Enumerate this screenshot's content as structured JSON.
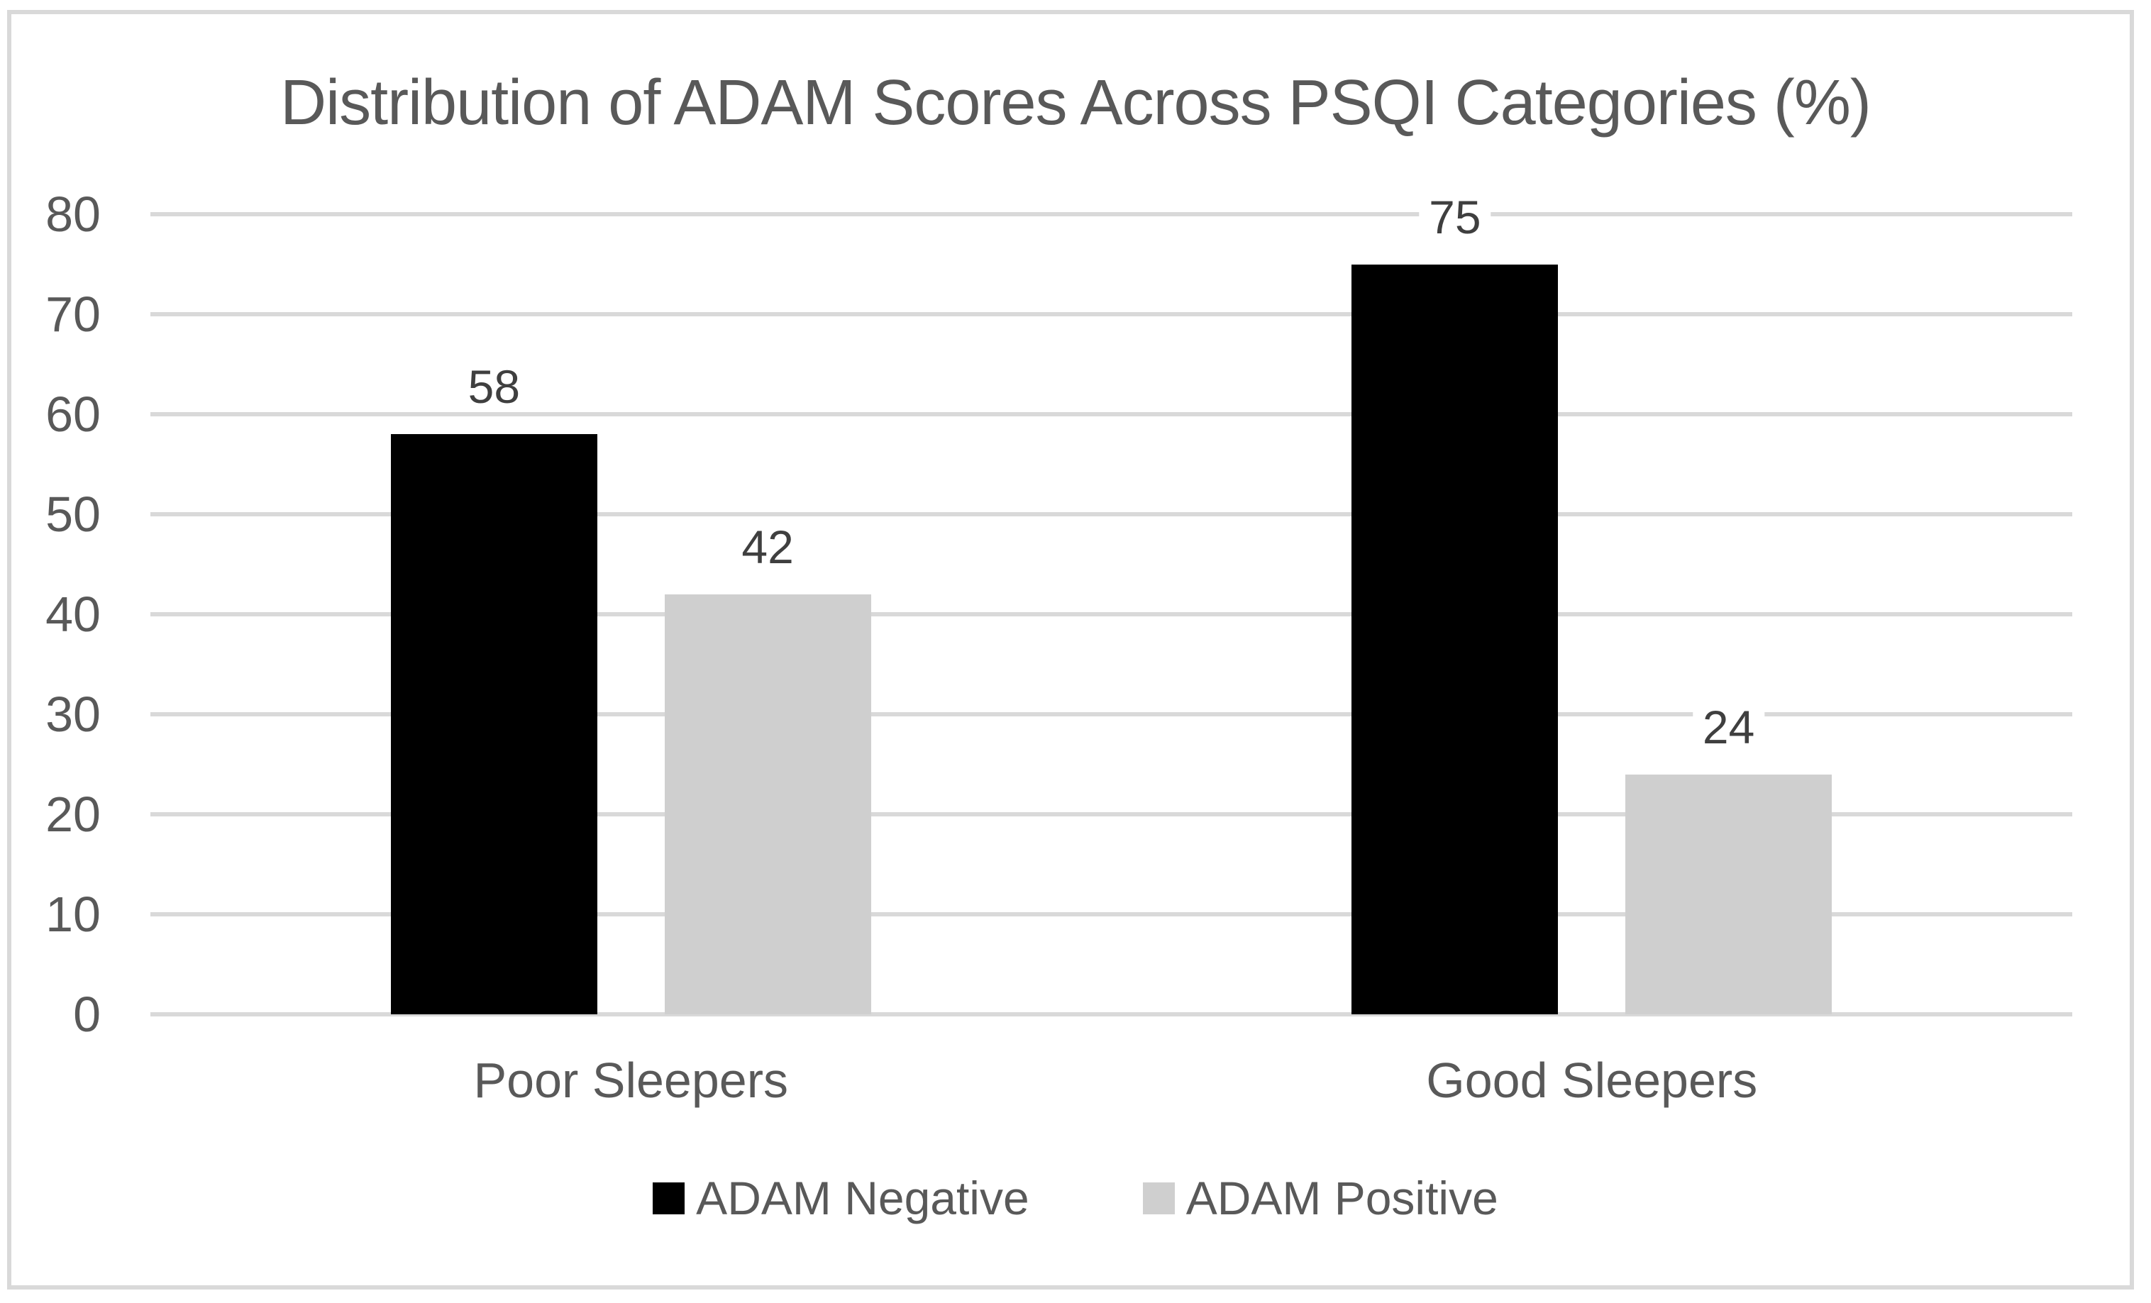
{
  "title": "Distribution of ADAM Scores Across PSQI Categories (%)",
  "chart_data": {
    "type": "bar",
    "title": "Distribution of ADAM Scores Across PSQI Categories (%)",
    "categories": [
      "Poor Sleepers",
      "Good Sleepers"
    ],
    "series": [
      {
        "name": "ADAM Negative",
        "color": "#000000",
        "values": [
          58,
          75
        ]
      },
      {
        "name": "ADAM Positive",
        "color": "#CFCFCF",
        "values": [
          42,
          24
        ]
      }
    ],
    "xlabel": "",
    "ylabel": "",
    "ylim": [
      0,
      80
    ],
    "yticks": [
      0,
      10,
      20,
      30,
      40,
      50,
      60,
      70,
      80
    ],
    "grid": "horizontal",
    "data_labels": true,
    "legend_position": "bottom"
  },
  "colors": {
    "axis_text": "#595959",
    "data_label_text": "#3F3F3F",
    "gridline": "#D9D9D9",
    "frame_border": "#D9D9D9",
    "background": "#FFFFFF"
  }
}
